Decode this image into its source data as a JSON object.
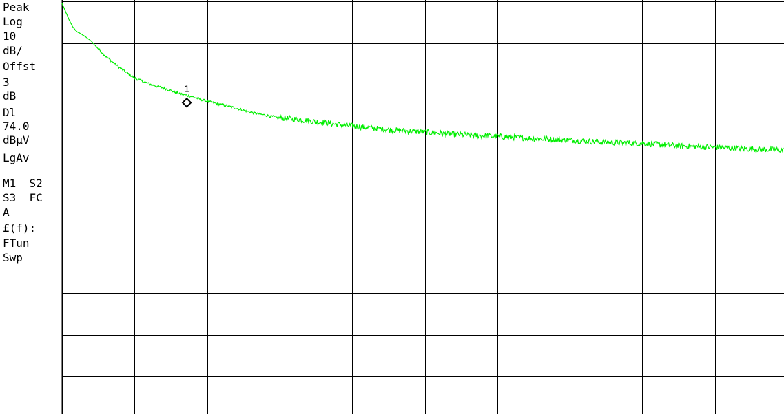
{
  "sidebar": {
    "items": [
      "Peak",
      "Log",
      "10",
      "dB/",
      "Offst",
      "3",
      "dB",
      "Dl",
      "74.0",
      "dBµV",
      "LgAv",
      "M1  S2",
      "S3  FC",
      "A",
      "£(f):",
      "FTun",
      "Swp"
    ]
  },
  "colors": {
    "trace": "#00ee00",
    "display_line": "#00ee00",
    "grid": "#000000",
    "background": "#ffffff"
  },
  "chart_data": {
    "type": "line",
    "title": "",
    "xlabel": "",
    "ylabel": "",
    "ref_level_dbuv": 83,
    "scale_db_per_div": 10,
    "offset_db": 3,
    "display_line_dbuv": 74.0,
    "ylim": [
      -17,
      83
    ],
    "xlim": [
      0,
      10
    ],
    "divisions": {
      "x": 10,
      "y": 10
    },
    "grid": true,
    "marker": {
      "label": "1",
      "x": 1.72,
      "y": 58.7
    },
    "series": [
      {
        "x": [
          0.0,
          0.05,
          0.1,
          0.15,
          0.2,
          0.3,
          0.4,
          0.5,
          0.6,
          0.7,
          0.8,
          0.9,
          1.0,
          1.2,
          1.4,
          1.6,
          1.8,
          2.0,
          2.2,
          2.4,
          2.6,
          2.8,
          3.0,
          3.2,
          3.5,
          4.0,
          4.5,
          5.0,
          5.5,
          6.0,
          6.5,
          7.0,
          7.5,
          8.0,
          8.5,
          9.0,
          9.5,
          10.0
        ],
        "y": [
          82.5,
          80.5,
          78.5,
          76.8,
          75.8,
          74.8,
          73.5,
          71.6,
          69.9,
          68.4,
          67.0,
          65.8,
          64.6,
          63.2,
          62.2,
          61.0,
          60.1,
          59.0,
          58.2,
          57.4,
          56.4,
          55.7,
          55.0,
          54.8,
          54.1,
          53.1,
          52.2,
          51.6,
          51.0,
          50.6,
          50.1,
          49.7,
          49.2,
          48.9,
          48.3,
          48.0,
          47.6,
          47.3
        ]
      }
    ]
  }
}
